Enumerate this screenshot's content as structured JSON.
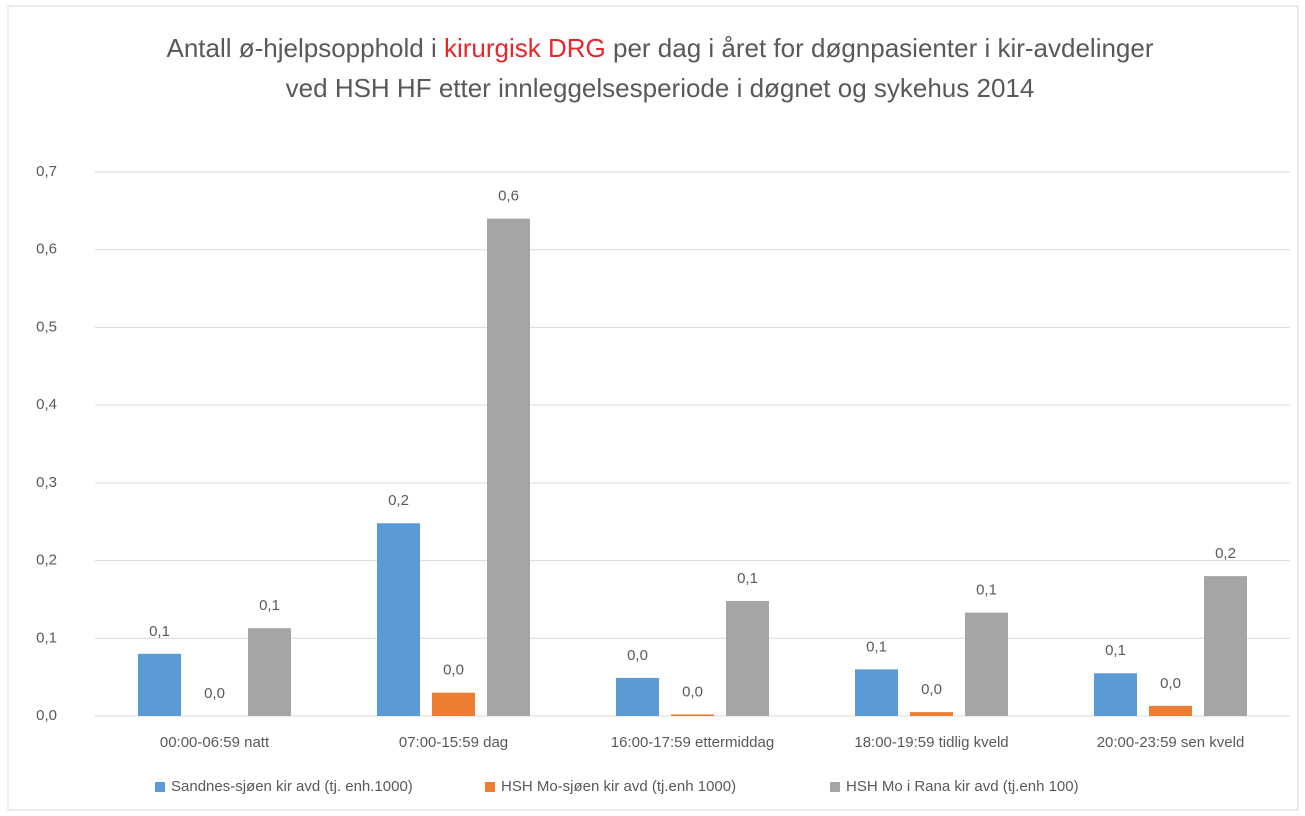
{
  "chart_data": {
    "type": "bar",
    "title": [
      "Antall ø-hjelpsopphold i ",
      "kirurgisk DRG",
      " per dag i året for døgnpasienter i kir-avdelinger ved HSH HF etter innleggelsesperiode i døgnet og sykehus 2014"
    ],
    "title_highlight_color": "#e8262b",
    "categories": [
      "00:00-06:59 natt",
      "07:00-15:59 dag",
      "16:00-17:59 ettermiddag",
      "18:00-19:59 tidlig kveld",
      "20:00-23:59 sen kveld"
    ],
    "series": [
      {
        "name": "Sandnes-sjøen kir avd (tj. enh.1000)",
        "color": "#5b9bd5",
        "values": [
          0.08,
          0.248,
          0.049,
          0.06,
          0.055
        ],
        "value_labels": [
          "0,1",
          "0,2",
          "0,0",
          "0,1",
          "0,1"
        ]
      },
      {
        "name": "HSH Mo-sjøen kir avd (tj.enh 1000)",
        "color": "#ed7d31",
        "values": [
          0.0,
          0.03,
          0.002,
          0.005,
          0.013
        ],
        "value_labels": [
          "0,0",
          "0,0",
          "0,0",
          "0,0",
          "0,0"
        ]
      },
      {
        "name": "HSH Mo i Rana kir avd (tj.enh 100)",
        "color": "#a5a5a5",
        "values": [
          0.113,
          0.64,
          0.148,
          0.133,
          0.18
        ],
        "value_labels": [
          "0,1",
          "0,6",
          "0,1",
          "0,1",
          "0,2"
        ]
      }
    ],
    "ylim": [
      0,
      0.7
    ],
    "yticks": [
      {
        "value": 0,
        "label": "0,0"
      },
      {
        "value": 0.1,
        "label": "0,1"
      },
      {
        "value": 0.2,
        "label": "0,2"
      },
      {
        "value": 0.3,
        "label": "0,3"
      },
      {
        "value": 0.4,
        "label": "0,4"
      },
      {
        "value": 0.5,
        "label": "0,5"
      },
      {
        "value": 0.6,
        "label": "0,6"
      },
      {
        "value": 0.7,
        "label": "0,7"
      }
    ],
    "grid": true,
    "legend": "bottom"
  }
}
